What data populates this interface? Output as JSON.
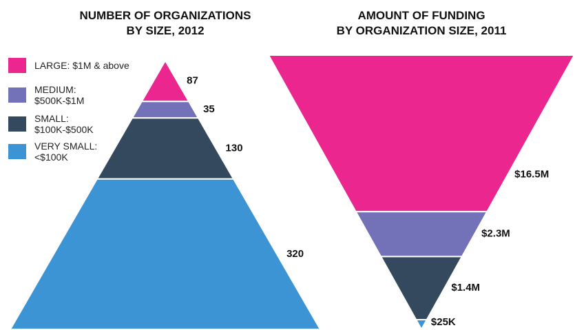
{
  "chart_data": [
    {
      "type": "pyramid",
      "title": "NUMBER OF ORGANIZATIONS\nBY SIZE, 2012",
      "categories": [
        "LARGE: $1M & above",
        "MEDIUM:\n$500K-$1M",
        "SMALL:\n$100K-$500K",
        "VERY SMALL:\n<$100K"
      ],
      "colors": [
        "#ec268f",
        "#7371b8",
        "#34495e",
        "#3d94d4"
      ],
      "values": [
        87,
        35,
        130,
        320
      ]
    },
    {
      "type": "funnel",
      "title": "AMOUNT OF FUNDING\nBY ORGANIZATION SIZE, 2011",
      "colors": [
        "#ec268f",
        "#7371b8",
        "#34495e",
        "#3d94d4"
      ],
      "values": [
        16500000,
        2300000,
        1400000,
        25000
      ],
      "value_labels": [
        "$16.5M",
        "$2.3M",
        "$1.4M",
        "$25K"
      ]
    }
  ]
}
